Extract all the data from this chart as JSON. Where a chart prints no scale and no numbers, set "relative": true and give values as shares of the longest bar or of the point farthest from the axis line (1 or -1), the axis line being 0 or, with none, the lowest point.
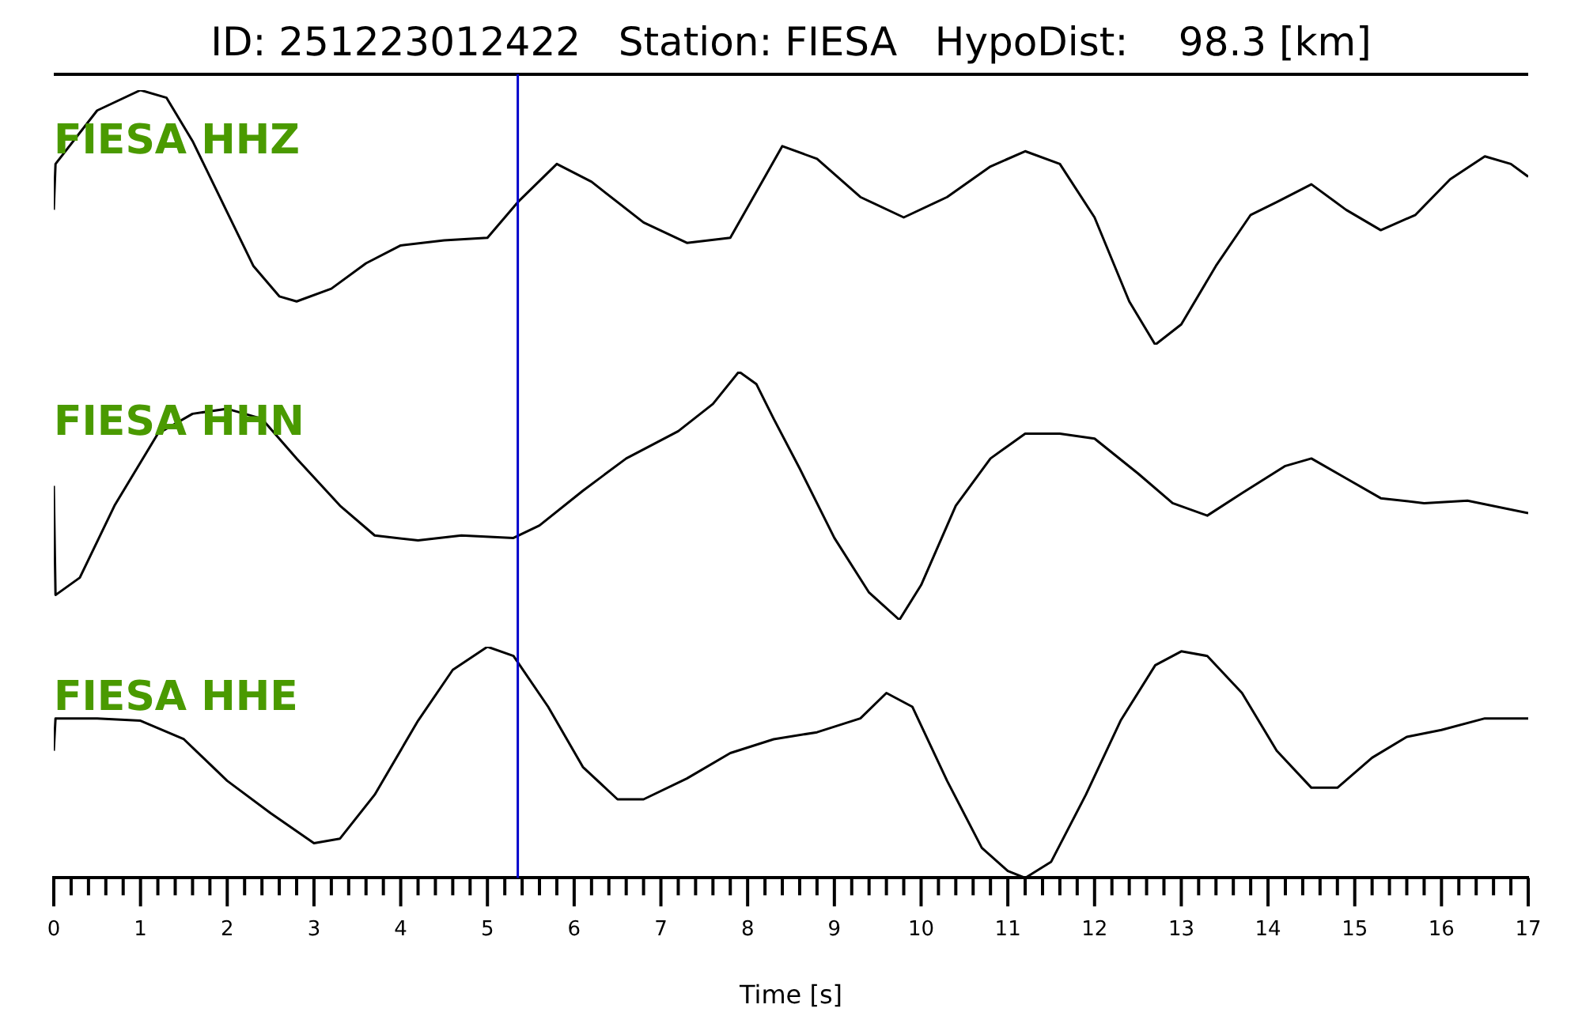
{
  "chart_data": [
    {
      "type": "line",
      "title": "ID: 251223012422   Station: FIESA   HypoDist:    98.3 [km]",
      "relative": true,
      "xlim": [
        0,
        17
      ],
      "tick_labels": false,
      "grid": false,
      "legend": false,
      "marker": "none",
      "line_style": "solid",
      "ref_lines": [
        {
          "axis": "x",
          "value": 5.35,
          "color": "#0000cc"
        }
      ],
      "series": [
        {
          "name": "FIESA HHZ",
          "color": "#000000",
          "x": [
            0,
            0.02,
            0.5,
            1.0,
            1.3,
            1.6,
            2.0,
            2.3,
            2.6,
            2.8,
            3.2,
            3.6,
            4.0,
            4.5,
            5.0,
            5.35,
            5.8,
            6.2,
            6.8,
            7.3,
            7.8,
            8.2,
            8.4,
            8.8,
            9.3,
            9.8,
            10.3,
            10.8,
            11.2,
            11.6,
            12.0,
            12.4,
            12.7,
            13.0,
            13.4,
            13.8,
            14.1,
            14.5,
            14.9,
            15.3,
            15.7,
            16.1,
            16.5,
            16.8,
            17.0
          ],
          "values": [
            0.53,
            0.71,
            0.92,
            1.0,
            0.97,
            0.8,
            0.52,
            0.31,
            0.19,
            0.17,
            0.22,
            0.32,
            0.39,
            0.41,
            0.42,
            0.56,
            0.71,
            0.64,
            0.48,
            0.4,
            0.42,
            0.66,
            0.78,
            0.73,
            0.58,
            0.5,
            0.58,
            0.7,
            0.76,
            0.71,
            0.5,
            0.17,
            0,
            0.08,
            0.31,
            0.51,
            0.56,
            0.63,
            0.53,
            0.45,
            0.51,
            0.65,
            0.74,
            0.71,
            0.66
          ]
        }
      ]
    },
    {
      "type": "line",
      "relative": true,
      "xlim": [
        0,
        17
      ],
      "tick_labels": false,
      "grid": false,
      "legend": false,
      "marker": "none",
      "line_style": "solid",
      "ref_lines": [
        {
          "axis": "x",
          "value": 5.35,
          "color": "#0000cc"
        }
      ],
      "series": [
        {
          "name": "FIESA HHN",
          "color": "#000000",
          "x": [
            0,
            0.02,
            0.3,
            0.7,
            1.2,
            1.6,
            2.0,
            2.4,
            2.8,
            3.3,
            3.7,
            4.2,
            4.7,
            5.3,
            5.6,
            6.1,
            6.6,
            7.2,
            7.6,
            7.9,
            8.1,
            8.3,
            8.6,
            9.0,
            9.4,
            9.75,
            10.0,
            10.4,
            10.8,
            11.2,
            11.6,
            12.0,
            12.5,
            12.9,
            13.3,
            13.7,
            14.2,
            14.5,
            14.9,
            15.3,
            15.8,
            16.3,
            17.0
          ],
          "values": [
            0.54,
            0.1,
            0.17,
            0.46,
            0.75,
            0.83,
            0.85,
            0.81,
            0.65,
            0.46,
            0.34,
            0.32,
            0.34,
            0.33,
            0.38,
            0.52,
            0.65,
            0.76,
            0.87,
            1.0,
            0.95,
            0.81,
            0.61,
            0.33,
            0.11,
            0,
            0.14,
            0.46,
            0.65,
            0.75,
            0.75,
            0.73,
            0.59,
            0.47,
            0.42,
            0.51,
            0.62,
            0.65,
            0.57,
            0.49,
            0.47,
            0.48,
            0.43
          ]
        }
      ]
    },
    {
      "type": "line",
      "xlabel": "Time [s]",
      "relative": true,
      "xlim": [
        0,
        17
      ],
      "tick_labels": "x",
      "grid": false,
      "legend": false,
      "marker": "none",
      "line_style": "solid",
      "xticks": [
        0,
        {
          "value": 0.2,
          "label": null
        },
        {
          "value": 0.4,
          "label": null
        },
        {
          "value": 0.6,
          "label": null
        },
        {
          "value": 0.8,
          "label": null
        },
        1,
        {
          "value": 1.2,
          "label": null
        },
        {
          "value": 1.4,
          "label": null
        },
        {
          "value": 1.6,
          "label": null
        },
        {
          "value": 1.8,
          "label": null
        },
        2,
        {
          "value": 2.2,
          "label": null
        },
        {
          "value": 2.4,
          "label": null
        },
        {
          "value": 2.6,
          "label": null
        },
        {
          "value": 2.8,
          "label": null
        },
        3,
        {
          "value": 3.2,
          "label": null
        },
        {
          "value": 3.4,
          "label": null
        },
        {
          "value": 3.6,
          "label": null
        },
        {
          "value": 3.8,
          "label": null
        },
        4,
        {
          "value": 4.2,
          "label": null
        },
        {
          "value": 4.4,
          "label": null
        },
        {
          "value": 4.6,
          "label": null
        },
        {
          "value": 4.8,
          "label": null
        },
        5,
        {
          "value": 5.2,
          "label": null
        },
        {
          "value": 5.4,
          "label": null
        },
        {
          "value": 5.6,
          "label": null
        },
        {
          "value": 5.8,
          "label": null
        },
        6,
        {
          "value": 6.2,
          "label": null
        },
        {
          "value": 6.4,
          "label": null
        },
        {
          "value": 6.6,
          "label": null
        },
        {
          "value": 6.8,
          "label": null
        },
        7,
        {
          "value": 7.2,
          "label": null
        },
        {
          "value": 7.4,
          "label": null
        },
        {
          "value": 7.6,
          "label": null
        },
        {
          "value": 7.8,
          "label": null
        },
        8,
        {
          "value": 8.2,
          "label": null
        },
        {
          "value": 8.4,
          "label": null
        },
        {
          "value": 8.6,
          "label": null
        },
        {
          "value": 8.8,
          "label": null
        },
        9,
        {
          "value": 9.2,
          "label": null
        },
        {
          "value": 9.4,
          "label": null
        },
        {
          "value": 9.6,
          "label": null
        },
        {
          "value": 9.8,
          "label": null
        },
        10,
        {
          "value": 10.2,
          "label": null
        },
        {
          "value": 10.4,
          "label": null
        },
        {
          "value": 10.6,
          "label": null
        },
        {
          "value": 10.8,
          "label": null
        },
        11,
        {
          "value": 11.2,
          "label": null
        },
        {
          "value": 11.4,
          "label": null
        },
        {
          "value": 11.6,
          "label": null
        },
        {
          "value": 11.8,
          "label": null
        },
        12,
        {
          "value": 12.2,
          "label": null
        },
        {
          "value": 12.4,
          "label": null
        },
        {
          "value": 12.6,
          "label": null
        },
        {
          "value": 12.8,
          "label": null
        },
        13,
        {
          "value": 13.2,
          "label": null
        },
        {
          "value": 13.4,
          "label": null
        },
        {
          "value": 13.6,
          "label": null
        },
        {
          "value": 13.8,
          "label": null
        },
        14,
        {
          "value": 14.2,
          "label": null
        },
        {
          "value": 14.4,
          "label": null
        },
        {
          "value": 14.6,
          "label": null
        },
        {
          "value": 14.8,
          "label": null
        },
        15,
        {
          "value": 15.2,
          "label": null
        },
        {
          "value": 15.4,
          "label": null
        },
        {
          "value": 15.6,
          "label": null
        },
        {
          "value": 15.8,
          "label": null
        },
        16,
        {
          "value": 16.2,
          "label": null
        },
        {
          "value": 16.4,
          "label": null
        },
        {
          "value": 16.6,
          "label": null
        },
        {
          "value": 16.8,
          "label": null
        },
        17
      ],
      "ref_lines": [
        {
          "axis": "x",
          "value": 5.35,
          "color": "#0000cc"
        }
      ],
      "series": [
        {
          "name": "FIESA HHE",
          "color": "#000000",
          "x": [
            0,
            0.02,
            0.5,
            1.0,
            1.5,
            2.0,
            2.5,
            3.0,
            3.3,
            3.7,
            4.2,
            4.6,
            5.0,
            5.3,
            5.7,
            6.1,
            6.5,
            6.8,
            7.3,
            7.8,
            8.3,
            8.8,
            9.3,
            9.6,
            9.9,
            10.3,
            10.7,
            11.0,
            11.2,
            11.5,
            11.9,
            12.3,
            12.7,
            13.0,
            13.3,
            13.7,
            14.1,
            14.5,
            14.8,
            15.2,
            15.6,
            16.0,
            16.5,
            17.0
          ],
          "values": [
            0.55,
            0.69,
            0.69,
            0.68,
            0.6,
            0.42,
            0.28,
            0.15,
            0.17,
            0.36,
            0.68,
            0.9,
            1.0,
            0.96,
            0.74,
            0.48,
            0.34,
            0.34,
            0.43,
            0.54,
            0.6,
            0.63,
            0.69,
            0.8,
            0.74,
            0.42,
            0.13,
            0.03,
            0,
            0.07,
            0.36,
            0.68,
            0.92,
            0.98,
            0.96,
            0.8,
            0.55,
            0.39,
            0.39,
            0.52,
            0.61,
            0.64,
            0.69,
            0.69
          ]
        }
      ]
    }
  ]
}
